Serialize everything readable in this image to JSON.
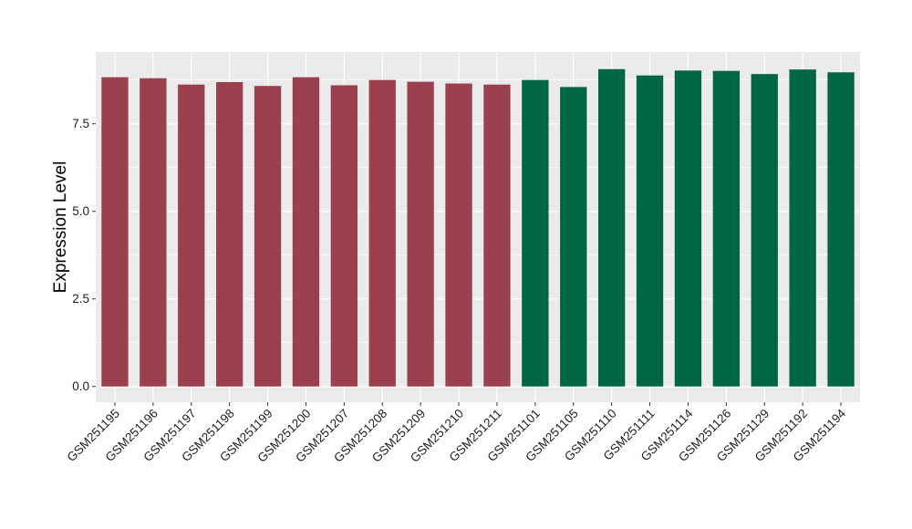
{
  "chart_data": {
    "type": "bar",
    "ylabel": "Expression Level",
    "xlabel": "",
    "title": "",
    "ylim": [
      -0.45,
      9.55
    ],
    "yticks": [
      0.0,
      2.5,
      5.0,
      7.5
    ],
    "ytick_labels": [
      "0.0",
      "2.5",
      "5.0",
      "7.5"
    ],
    "grid": true,
    "legend": "none",
    "colors": {
      "group1": "#9b404e",
      "group2": "#006644",
      "panel": "#ebebeb",
      "grid": "#ffffff"
    },
    "categories": [
      "GSM251195",
      "GSM251196",
      "GSM251197",
      "GSM251198",
      "GSM251199",
      "GSM251200",
      "GSM251207",
      "GSM251208",
      "GSM251209",
      "GSM251210",
      "GSM251211",
      "GSM251101",
      "GSM251105",
      "GSM251110",
      "GSM251111",
      "GSM251114",
      "GSM251126",
      "GSM251129",
      "GSM251192",
      "GSM251194"
    ],
    "values": [
      8.83,
      8.8,
      8.62,
      8.69,
      8.58,
      8.83,
      8.6,
      8.75,
      8.7,
      8.65,
      8.62,
      8.75,
      8.55,
      9.06,
      8.88,
      9.02,
      9.01,
      8.92,
      9.05,
      8.97
    ],
    "groups": [
      1,
      1,
      1,
      1,
      1,
      1,
      1,
      1,
      1,
      1,
      1,
      2,
      2,
      2,
      2,
      2,
      2,
      2,
      2,
      2
    ]
  }
}
